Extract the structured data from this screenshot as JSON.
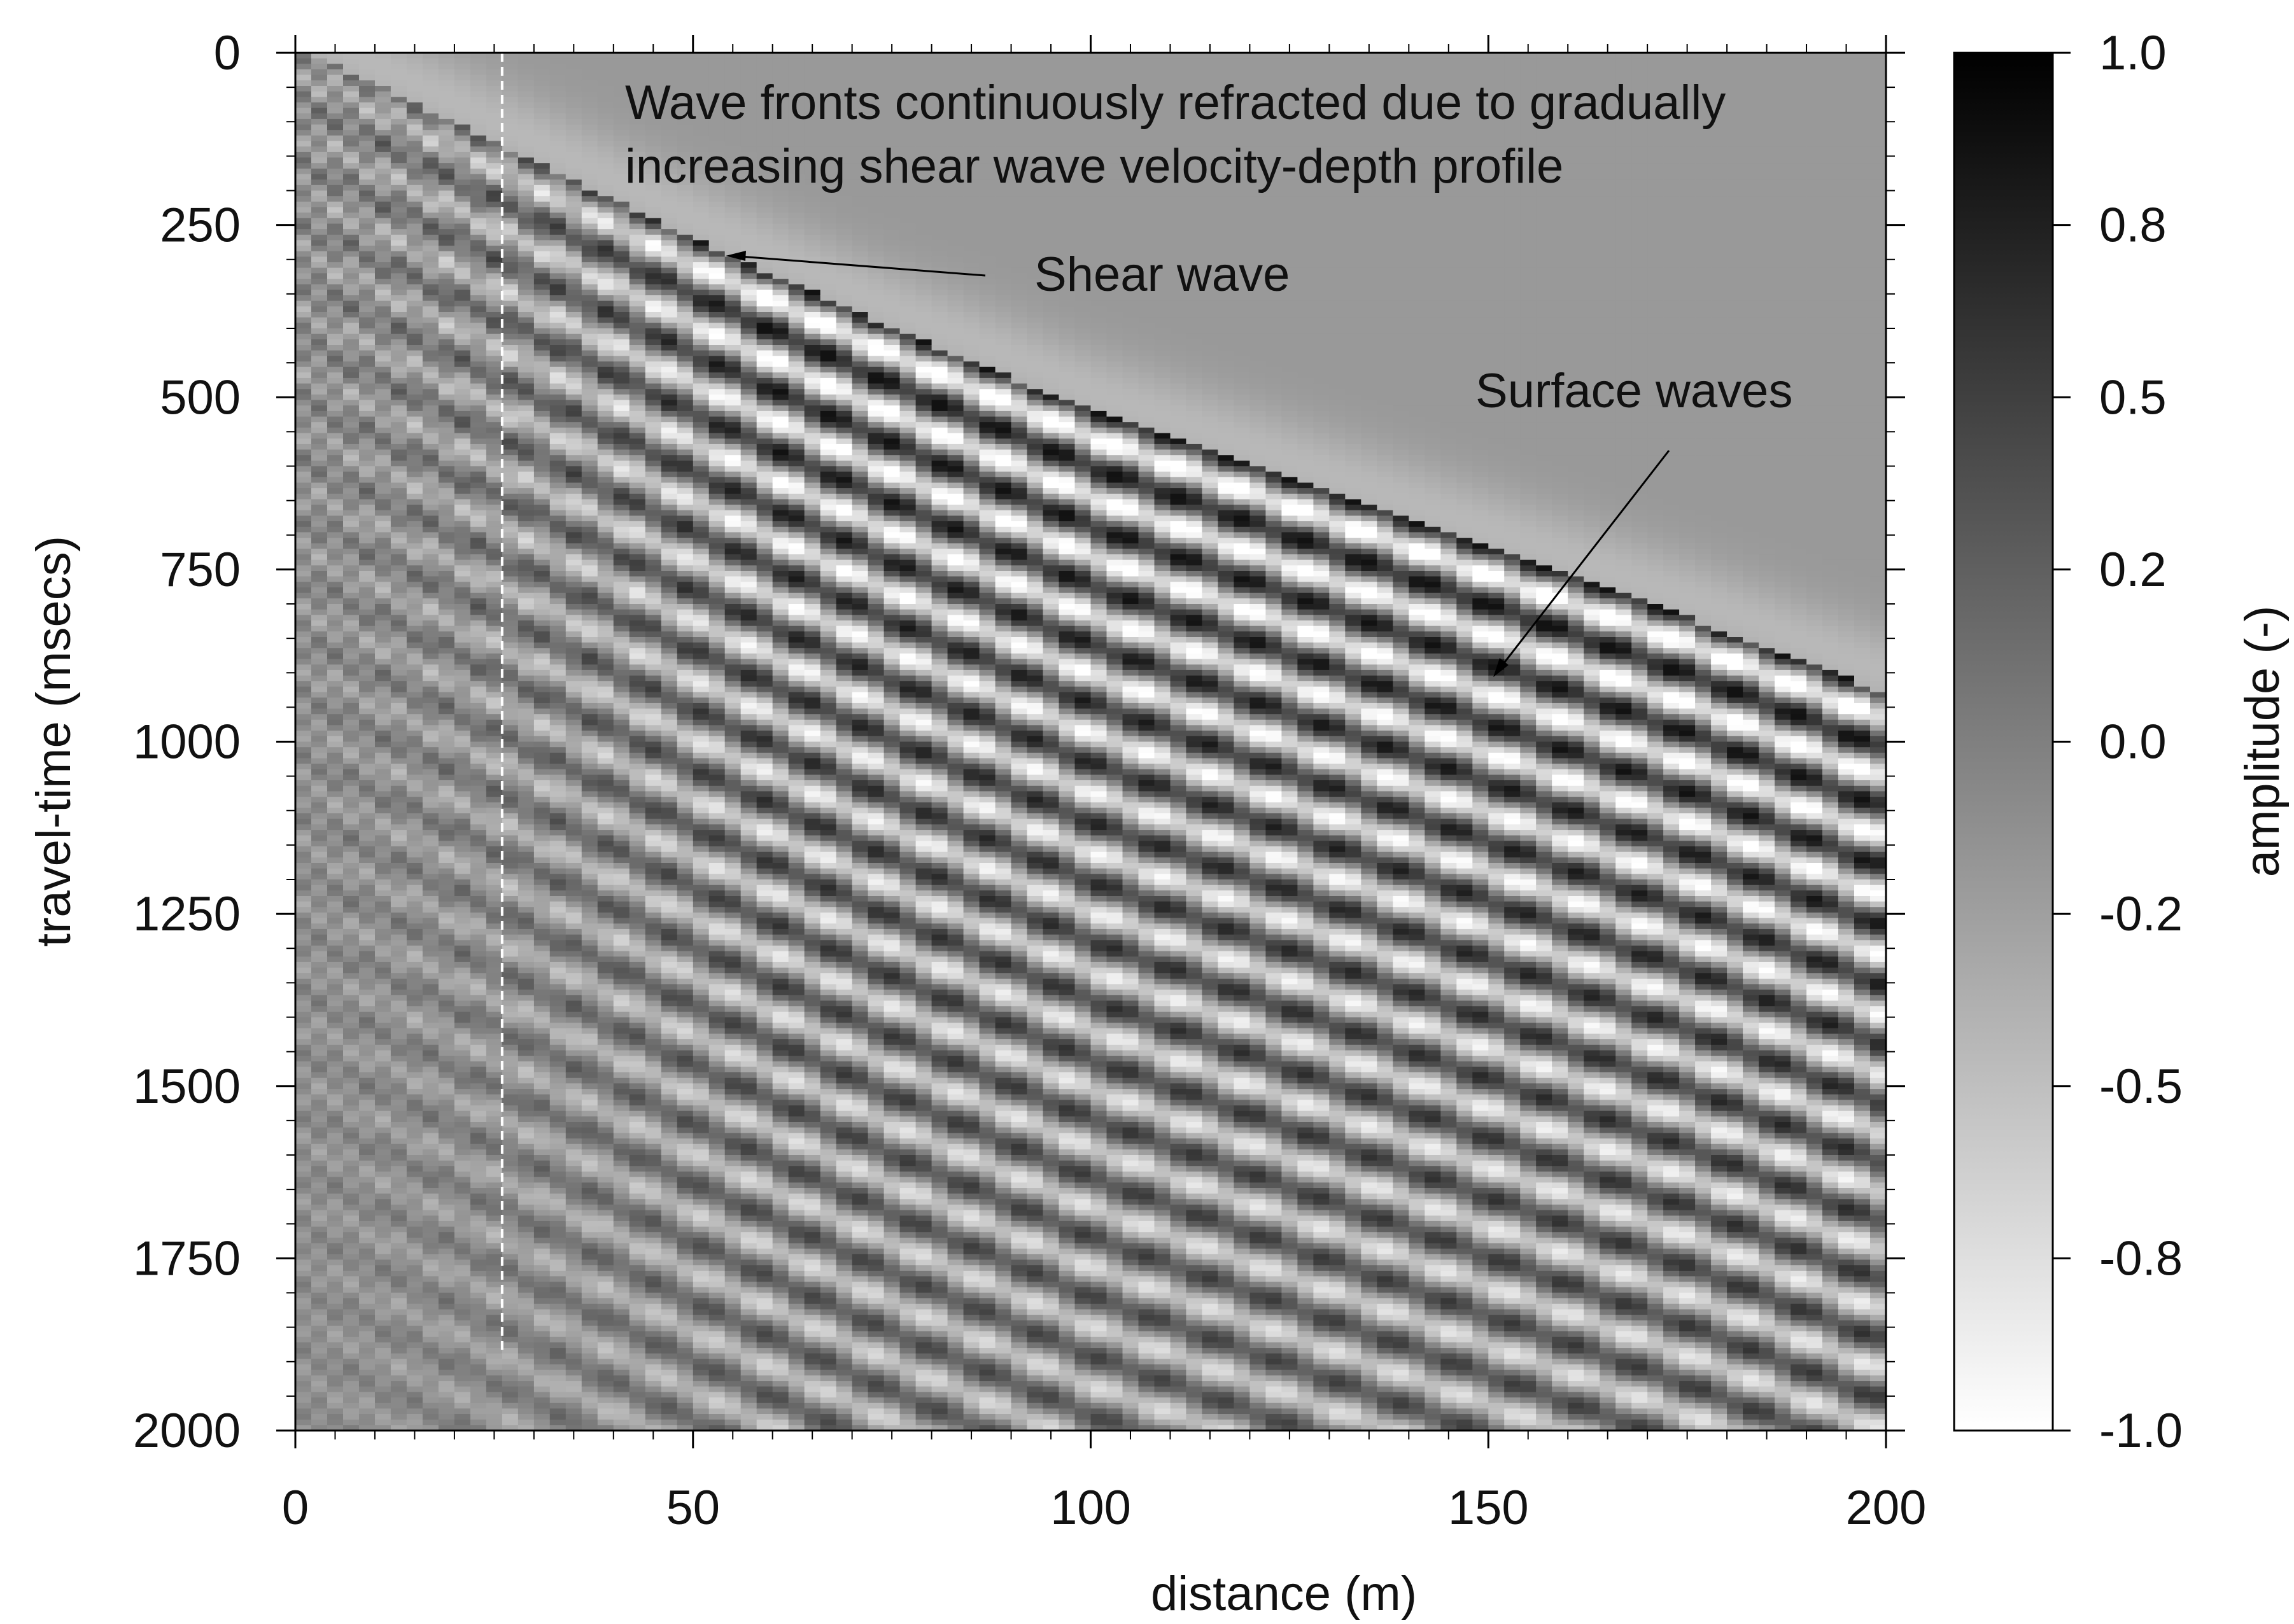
{
  "chart_data": {
    "type": "heatmap",
    "title": "",
    "xlabel": "distance (m)",
    "ylabel": "travel-time (msecs)",
    "xlim": [
      0,
      200
    ],
    "ylim": [
      2000,
      0
    ],
    "y_inverted": true,
    "x_ticks": [
      0,
      50,
      100,
      150,
      200
    ],
    "x_tick_labels": [
      "0",
      "50",
      "100",
      "150",
      "200"
    ],
    "y_ticks": [
      0,
      250,
      500,
      750,
      1000,
      1250,
      1500,
      1750,
      2000
    ],
    "y_tick_labels": [
      "0",
      "250",
      "500",
      "750",
      "1000",
      "1250",
      "1500",
      "1750",
      "2000"
    ],
    "colorbar": {
      "label": "amplitude (-)",
      "range": [
        -1.0,
        1.0
      ],
      "ticks": [
        1.0,
        0.8,
        0.5,
        0.2,
        0.0,
        -0.2,
        -0.5,
        -0.8,
        -1.0
      ],
      "tick_labels": [
        "1.0",
        "0.8",
        "0.5",
        "0.2",
        "0.0",
        "-0.2",
        "-0.5",
        "-0.8",
        "-1.0"
      ],
      "colormap": "grayscale",
      "color_max": "#000000",
      "color_min": "#ffffff"
    },
    "first_arrival_curve": {
      "distance": [
        0,
        25,
        50,
        75,
        100,
        125,
        150,
        175,
        200
      ],
      "time": [
        50,
        190,
        330,
        460,
        580,
        680,
        780,
        880,
        990
      ]
    },
    "reference_line": {
      "style": "dashed",
      "color": "#ffffff",
      "distance": 26,
      "time_range": [
        0,
        1890
      ]
    },
    "annotations": [
      {
        "text_lines": [
          "Wave fronts continuously refracted due to gradually",
          "increasing shear wave velocity-depth profile"
        ]
      },
      {
        "text": "Shear wave",
        "arrow_to": {
          "distance": 53,
          "time": 295
        }
      },
      {
        "text": "Surface waves",
        "arrow_to": {
          "distance": 150,
          "time": 915
        }
      }
    ]
  }
}
